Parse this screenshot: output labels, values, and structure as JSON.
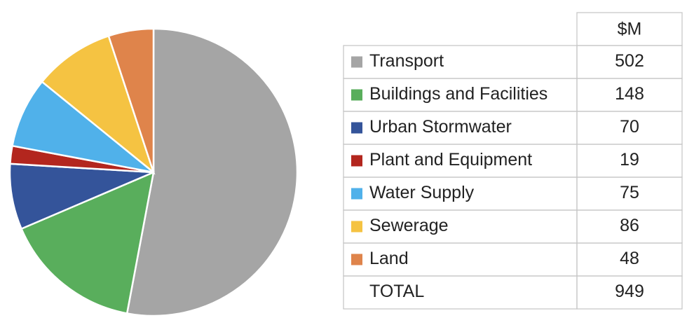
{
  "chart_data": {
    "type": "pie",
    "value_header": "$M",
    "categories": [
      "Transport",
      "Buildings and Facilities",
      "Urban Stormwater",
      "Plant and Equipment",
      "Water Supply",
      "Sewerage",
      "Land"
    ],
    "values": [
      502,
      148,
      70,
      19,
      75,
      86,
      48
    ],
    "colors": [
      "#a5a5a5",
      "#59ae5c",
      "#34549a",
      "#b3261e",
      "#50b1ea",
      "#f5c342",
      "#df844b"
    ],
    "total": {
      "label": "TOTAL",
      "value": 949
    }
  }
}
